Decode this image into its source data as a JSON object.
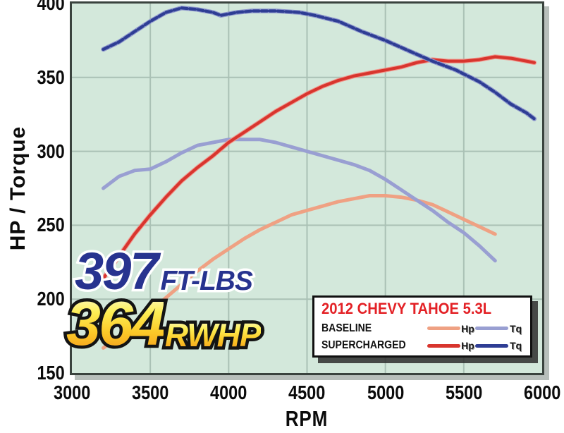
{
  "axes": {
    "y_label": "HP / Torque",
    "x_label": "RPM",
    "y_ticks": [
      "400",
      "350",
      "300",
      "250",
      "200",
      "150"
    ],
    "x_ticks": [
      "3000",
      "3500",
      "4000",
      "4500",
      "5000",
      "5500",
      "6000"
    ]
  },
  "overlay": {
    "torque_value": "397",
    "torque_unit": "FT-LBS",
    "hp_value": "364",
    "hp_unit": "RWHP"
  },
  "legend": {
    "title": "2012 CHEVY TAHOE 5.3L",
    "rows": [
      {
        "label": "BASELINE",
        "hp_label": "Hp",
        "tq_label": "Tq"
      },
      {
        "label": "SUPERCHARGED",
        "hp_label": "Hp",
        "tq_label": "Tq"
      }
    ]
  },
  "colors": {
    "plot_bg": "#d3e8db",
    "grid": "#aac1b5",
    "plot_border": "#3a433e",
    "legend_title_red": "#e32126",
    "big_torque_blue": "#27338f",
    "big_hp_gold": "#fbc928",
    "baseline_hp": "#efa183",
    "baseline_tq": "#999fd2",
    "supercharged_hp": "#d8352e",
    "supercharged_tq": "#2e3d94"
  },
  "chart_data": {
    "type": "line",
    "xlabel": "RPM",
    "ylabel": "HP / Torque",
    "x_range": [
      3000,
      6000
    ],
    "y_range": [
      150,
      400
    ],
    "x_tick_step": 500,
    "y_tick_step": 50,
    "grid": true,
    "legend_position": "bottom-right-inside",
    "series": [
      {
        "id": "baseline_hp",
        "group": "BASELINE",
        "label": "Hp",
        "color": "#efa183",
        "halo": "",
        "dashed": false,
        "points": [
          [
            3200,
            167
          ],
          [
            3300,
            174
          ],
          [
            3400,
            184
          ],
          [
            3500,
            192
          ],
          [
            3600,
            201
          ],
          [
            3700,
            210
          ],
          [
            3800,
            219
          ],
          [
            3900,
            227
          ],
          [
            4000,
            234
          ],
          [
            4100,
            241
          ],
          [
            4200,
            247
          ],
          [
            4300,
            252
          ],
          [
            4400,
            257
          ],
          [
            4500,
            260
          ],
          [
            4600,
            263
          ],
          [
            4700,
            266
          ],
          [
            4800,
            268
          ],
          [
            4900,
            270
          ],
          [
            5000,
            270
          ],
          [
            5100,
            269
          ],
          [
            5200,
            267
          ],
          [
            5300,
            264
          ],
          [
            5400,
            259
          ],
          [
            5500,
            254
          ],
          [
            5600,
            249
          ],
          [
            5700,
            244
          ]
        ]
      },
      {
        "id": "baseline_tq",
        "group": "BASELINE",
        "label": "Tq",
        "color": "#999fd2",
        "halo": "",
        "dashed": false,
        "points": [
          [
            3200,
            275
          ],
          [
            3300,
            283
          ],
          [
            3400,
            287
          ],
          [
            3500,
            288
          ],
          [
            3600,
            293
          ],
          [
            3700,
            299
          ],
          [
            3800,
            304
          ],
          [
            3900,
            306
          ],
          [
            4000,
            308
          ],
          [
            4100,
            308
          ],
          [
            4200,
            308
          ],
          [
            4300,
            306
          ],
          [
            4400,
            303
          ],
          [
            4500,
            300
          ],
          [
            4600,
            297
          ],
          [
            4700,
            294
          ],
          [
            4800,
            291
          ],
          [
            4900,
            287
          ],
          [
            5000,
            281
          ],
          [
            5100,
            274
          ],
          [
            5200,
            267
          ],
          [
            5300,
            260
          ],
          [
            5400,
            252
          ],
          [
            5500,
            245
          ],
          [
            5600,
            236
          ],
          [
            5700,
            226
          ]
        ]
      },
      {
        "id": "supercharged_hp",
        "group": "SUPERCHARGED",
        "label": "Hp",
        "color": "#d8352e",
        "halo": "#f0988e",
        "dashed": false,
        "points": [
          [
            3200,
            214
          ],
          [
            3300,
            229
          ],
          [
            3400,
            244
          ],
          [
            3500,
            257
          ],
          [
            3600,
            269
          ],
          [
            3700,
            280
          ],
          [
            3800,
            289
          ],
          [
            3900,
            297
          ],
          [
            4000,
            306
          ],
          [
            4100,
            313
          ],
          [
            4200,
            320
          ],
          [
            4300,
            327
          ],
          [
            4400,
            333
          ],
          [
            4500,
            339
          ],
          [
            4600,
            344
          ],
          [
            4700,
            348
          ],
          [
            4800,
            351
          ],
          [
            4900,
            353
          ],
          [
            5000,
            355
          ],
          [
            5100,
            357
          ],
          [
            5200,
            360
          ],
          [
            5300,
            362
          ],
          [
            5400,
            361
          ],
          [
            5500,
            361
          ],
          [
            5600,
            362
          ],
          [
            5700,
            364
          ],
          [
            5800,
            363
          ],
          [
            5900,
            361
          ],
          [
            5950,
            360
          ]
        ]
      },
      {
        "id": "supercharged_tq",
        "group": "SUPERCHARGED",
        "label": "Tq",
        "color": "#2e3d94",
        "halo": "#8d96cc",
        "dashed": true,
        "points": [
          [
            3200,
            369
          ],
          [
            3300,
            374
          ],
          [
            3400,
            381
          ],
          [
            3500,
            388
          ],
          [
            3600,
            394
          ],
          [
            3700,
            397
          ],
          [
            3800,
            396
          ],
          [
            3900,
            394
          ],
          [
            3950,
            392
          ],
          [
            4050,
            394
          ],
          [
            4150,
            395
          ],
          [
            4300,
            395
          ],
          [
            4450,
            394
          ],
          [
            4550,
            392
          ],
          [
            4700,
            388
          ],
          [
            4850,
            381
          ],
          [
            5000,
            375
          ],
          [
            5150,
            368
          ],
          [
            5300,
            361
          ],
          [
            5450,
            355
          ],
          [
            5600,
            347
          ],
          [
            5700,
            340
          ],
          [
            5800,
            332
          ],
          [
            5900,
            326
          ],
          [
            5950,
            322
          ]
        ]
      }
    ],
    "annotations": [
      {
        "text": "397 FT-LBS",
        "meaning": "peak supercharged torque"
      },
      {
        "text": "364 RWHP",
        "meaning": "peak supercharged rear-wheel horsepower"
      }
    ]
  }
}
